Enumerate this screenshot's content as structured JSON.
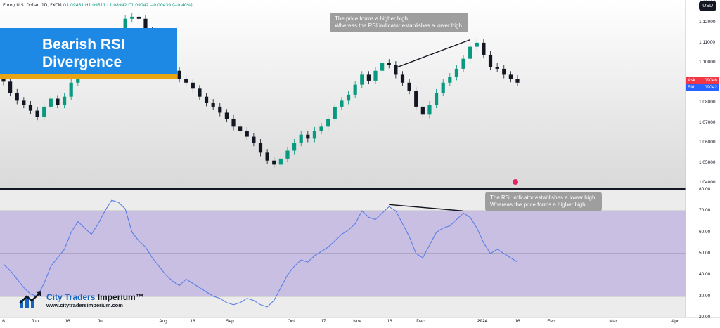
{
  "header": {
    "symbol": "Euro / U.S. Dollar, 1D, FXCM",
    "ohlc": "O1.09481 H1.09511 L1.08942 C1.09042 −0.00439 (−0.40%)"
  },
  "title": {
    "line1": "Bearish RSI",
    "line2": "Divergence"
  },
  "callout_price": {
    "line1": "The price forms a higher high,",
    "line2": "Whereas the RSI indicator establishes a lower high."
  },
  "callout_rsi": {
    "line1": "The RSI indicator establishes a lower high,",
    "line2": "Whereas the price forms a higher high,"
  },
  "currency_tag": "USD",
  "quote": {
    "ask_label": "Ask",
    "ask_value": "1.09046",
    "ask_color": "#f23645",
    "bid_label": "Bid",
    "bid_value": "1.09042",
    "bid_color": "#2962ff"
  },
  "price_axis": [
    "1.13000",
    "1.12000",
    "1.11000",
    "1.10000",
    "1.09000",
    "1.08000",
    "1.07000",
    "1.06000",
    "1.05000",
    "1.04000"
  ],
  "rsi_axis": [
    "80.00",
    "70.00",
    "60.00",
    "50.00",
    "40.00",
    "30.00",
    "20.00"
  ],
  "time_axis": [
    "6",
    "Jun",
    "16",
    "Jul",
    "Aug",
    "16",
    "Sep",
    "Oct",
    "17",
    "Nov",
    "16",
    "Dec",
    "2024",
    "16",
    "Feb",
    "Mar",
    "Apr"
  ],
  "branding": {
    "name_part1": "City Traders",
    "name_part2": " Imperium™",
    "url": "www.citytradersimperium.com"
  },
  "colors": {
    "up": "#089981",
    "down": "#131722",
    "rsi_line": "#5b7ee5",
    "rsi_band": "#c9bfe3",
    "title_bg": "#1e88e5",
    "title_accent": "#e8a412"
  },
  "chart_data": {
    "type": "candlestick",
    "price_range": [
      1.04,
      1.13
    ],
    "rsi_range": [
      20,
      80
    ],
    "rsi_levels": [
      30,
      50,
      70
    ],
    "price_closes": [
      1.0905,
      1.085,
      1.081,
      1.079,
      1.076,
      1.073,
      1.078,
      1.082,
      1.079,
      1.083,
      1.09,
      1.094,
      1.096,
      1.099,
      1.097,
      1.101,
      1.108,
      1.114,
      1.122,
      1.123,
      1.122,
      1.116,
      1.112,
      1.105,
      1.099,
      1.096,
      1.092,
      1.09,
      1.087,
      1.083,
      1.08,
      1.078,
      1.075,
      1.072,
      1.068,
      1.066,
      1.063,
      1.06,
      1.055,
      1.051,
      1.049,
      1.052,
      1.056,
      1.06,
      1.064,
      1.062,
      1.066,
      1.068,
      1.072,
      1.078,
      1.081,
      1.084,
      1.089,
      1.094,
      1.091,
      1.096,
      1.1,
      1.099,
      1.094,
      1.09,
      1.086,
      1.078,
      1.074,
      1.079,
      1.085,
      1.09,
      1.093,
      1.097,
      1.102,
      1.108,
      1.11,
      1.104,
      1.098,
      1.097,
      1.094,
      1.092,
      1.09
    ],
    "rsi_values": [
      45,
      42,
      38,
      34,
      31,
      30,
      36,
      44,
      48,
      52,
      60,
      65,
      62,
      59,
      64,
      70,
      75,
      74,
      71,
      60,
      56,
      53,
      48,
      44,
      40,
      37,
      35,
      38,
      36,
      34,
      32,
      30,
      29,
      27,
      26,
      27,
      29,
      28,
      26,
      25,
      28,
      34,
      40,
      44,
      47,
      46,
      49,
      51,
      53,
      56,
      59,
      61,
      64,
      70,
      67,
      66,
      69,
      72,
      70,
      64,
      58,
      50,
      48,
      54,
      60,
      62,
      63,
      66,
      69,
      67,
      62,
      55,
      50,
      52,
      50,
      48,
      46
    ],
    "annotations": [
      {
        "pane": "price",
        "from_index": 58,
        "to_index": 69,
        "note": "higher high"
      },
      {
        "pane": "rsi",
        "from_index": 57,
        "to_index": 68,
        "note": "lower high"
      }
    ]
  }
}
